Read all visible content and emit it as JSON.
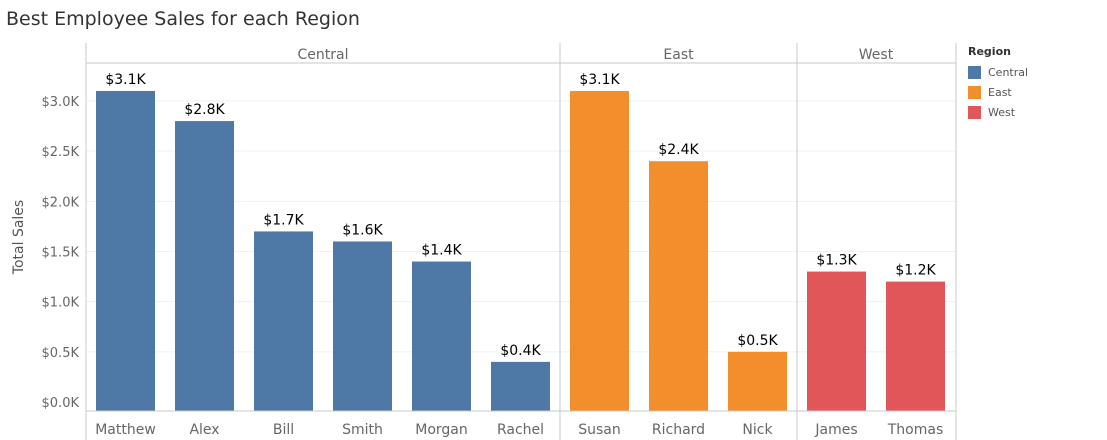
{
  "title": "Best Employee Sales for each Region",
  "colors": {
    "Central": "#4e79a7",
    "East": "#f28e2b",
    "West": "#e15759"
  },
  "chart_data": {
    "type": "bar",
    "title": "Best Employee Sales for each Region",
    "ylabel": "Total Sales",
    "ylim": [
      0,
      3300
    ],
    "yticks": [
      0,
      500,
      1000,
      1500,
      2000,
      2500,
      3000
    ],
    "ytick_labels": [
      "$0.0K",
      "$0.5K",
      "$1.0K",
      "$1.5K",
      "$2.0K",
      "$2.5K",
      "$3.0K"
    ],
    "grid": true,
    "legend_position": "right",
    "legend_title": "Region",
    "legend": [
      "Central",
      "East",
      "West"
    ],
    "panels": [
      {
        "region": "Central",
        "categories": [
          "Matthew",
          "Alex",
          "Bill",
          "Smith",
          "Morgan",
          "Rachel"
        ],
        "values": [
          3100,
          2800,
          1700,
          1600,
          1400,
          400
        ],
        "labels": [
          "$3.1K",
          "$2.8K",
          "$1.7K",
          "$1.6K",
          "$1.4K",
          "$0.4K"
        ]
      },
      {
        "region": "East",
        "categories": [
          "Susan",
          "Richard",
          "Nick"
        ],
        "values": [
          3100,
          2400,
          500
        ],
        "labels": [
          "$3.1K",
          "$2.4K",
          "$0.5K"
        ]
      },
      {
        "region": "West",
        "categories": [
          "James",
          "Thomas"
        ],
        "values": [
          1300,
          1200
        ],
        "labels": [
          "$1.3K",
          "$1.2K"
        ]
      }
    ]
  }
}
